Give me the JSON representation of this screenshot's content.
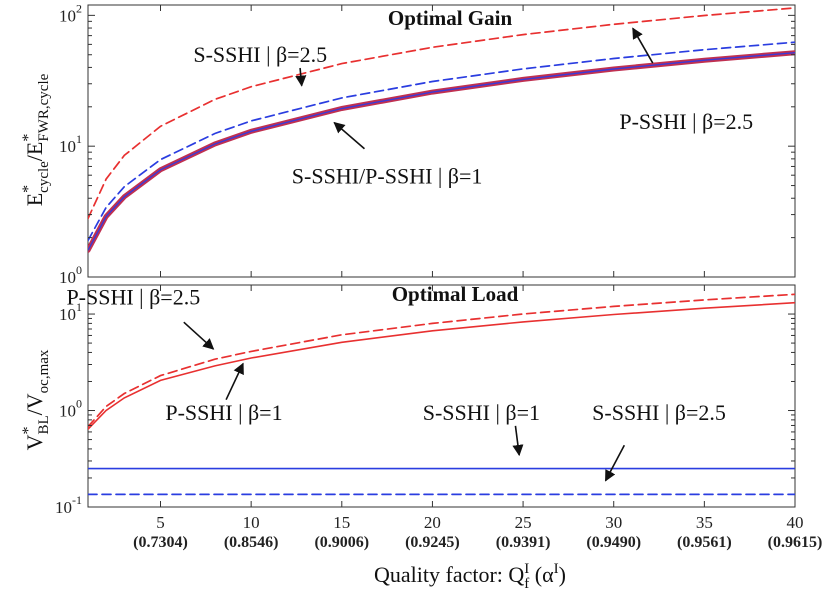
{
  "chart_data": [
    {
      "type": "line",
      "title": "Optimal Gain",
      "ylabel": "E*cycle/E*FWR,cycle",
      "ylabel_parts": {
        "main1": "E",
        "sup1": "*",
        "sub1": "cycle",
        "slash": "/",
        "main2": "E",
        "sup2": "*",
        "sub2": "FWR,cycle"
      },
      "yscale": "log",
      "ylim": [
        1,
        120
      ],
      "xlim": [
        1,
        40
      ],
      "yticks": [
        {
          "value": 1,
          "base": "10",
          "exp": "0"
        },
        {
          "value": 10,
          "base": "10",
          "exp": "1"
        },
        {
          "value": 100,
          "base": "10",
          "exp": "2"
        }
      ],
      "series": [
        {
          "color": "#e83030",
          "style": "dashed",
          "x": [
            1,
            2,
            3,
            5,
            8,
            10,
            15,
            20,
            25,
            30,
            35,
            40
          ],
          "y": [
            2.8,
            5.6,
            8.5,
            14.2,
            22.8,
            28.5,
            42.8,
            57,
            71.3,
            85.5,
            99.8,
            114
          ]
        },
        {
          "color": "#2a3de0",
          "style": "dashed",
          "x": [
            1,
            2,
            3,
            5,
            8,
            10,
            15,
            20,
            25,
            30,
            35,
            40
          ],
          "y": [
            1.9,
            3.4,
            4.9,
            7.9,
            12.5,
            15.6,
            23.4,
            31.2,
            39,
            46.8,
            54.6,
            62.4
          ]
        },
        {
          "color": "#c03050",
          "style": "thick",
          "x": [
            1,
            2,
            3,
            5,
            8,
            10,
            15,
            20,
            25,
            30,
            35,
            40
          ],
          "y": [
            1.6,
            2.9,
            4.1,
            6.6,
            10.4,
            13,
            19.4,
            25.9,
            32.4,
            38.9,
            45.4,
            51.8
          ]
        }
      ],
      "annotations": [
        {
          "text": "S-SSHI | β=2.5",
          "x": 10.5,
          "y": 44,
          "target_x": 12.8,
          "target_y": 28
        },
        {
          "text": "P-SSHI | β=2.5",
          "x": 34,
          "y": 13.5,
          "target_x": 31,
          "target_y": 82
        },
        {
          "text": "S-SSHI/P-SSHI | β=1",
          "x": 17.5,
          "y": 5.2,
          "target_x": 14.5,
          "target_y": 15.5
        }
      ]
    },
    {
      "type": "line",
      "title": "Optimal Load",
      "ylabel": "V*BL/Voc,max",
      "ylabel_parts": {
        "main1": "V",
        "sup1": "*",
        "sub1": "BL",
        "slash": "/",
        "main2": "V",
        "sub2": "oc,max"
      },
      "yscale": "log",
      "ylim": [
        0.1,
        20
      ],
      "xlim": [
        1,
        40
      ],
      "xlabel": "Quality factor: Q",
      "xlabel_parts": {
        "main": "Quality factor: Q",
        "sup": "I",
        "sub": "f",
        "paren_open": " (α",
        "paren_sup": "I",
        "paren_close": ")"
      },
      "xticks": [
        {
          "value": 5,
          "label": "5",
          "sub": "(0.7304)"
        },
        {
          "value": 10,
          "label": "10",
          "sub": "(0.8546)"
        },
        {
          "value": 15,
          "label": "15",
          "sub": "(0.9006)"
        },
        {
          "value": 20,
          "label": "20",
          "sub": "(0.9245)"
        },
        {
          "value": 25,
          "label": "25",
          "sub": "(0.9391)"
        },
        {
          "value": 30,
          "label": "30",
          "sub": "(0.9490)"
        },
        {
          "value": 35,
          "label": "35",
          "sub": "(0.9561)"
        },
        {
          "value": 40,
          "label": "40",
          "sub": "(0.9615)"
        }
      ],
      "yticks": [
        {
          "value": 0.1,
          "base": "10",
          "exp": "-1"
        },
        {
          "value": 1,
          "base": "10",
          "exp": "0"
        },
        {
          "value": 10,
          "base": "10",
          "exp": "1"
        }
      ],
      "series": [
        {
          "color": "#e83030",
          "style": "dashed",
          "x": [
            1,
            2,
            3,
            5,
            8,
            10,
            15,
            20,
            25,
            30,
            35,
            40
          ],
          "y": [
            0.68,
            1.1,
            1.5,
            2.3,
            3.4,
            4.1,
            6.1,
            8,
            10,
            12,
            14,
            16
          ]
        },
        {
          "color": "#e83030",
          "style": "solid",
          "x": [
            1,
            2,
            3,
            5,
            8,
            10,
            15,
            20,
            25,
            30,
            35,
            40
          ],
          "y": [
            0.64,
            1.0,
            1.35,
            2.05,
            2.9,
            3.5,
            5.1,
            6.7,
            8.3,
            9.9,
            11.5,
            13.1
          ]
        },
        {
          "color": "#2a3de0",
          "style": "solid",
          "x": [
            1,
            40
          ],
          "y": [
            0.25,
            0.25
          ]
        },
        {
          "color": "#2a3de0",
          "style": "dashed",
          "x": [
            1,
            40
          ],
          "y": [
            0.135,
            0.135
          ]
        }
      ],
      "annotations": [
        {
          "text": "P-SSHI | β=2.5",
          "x": 3.5,
          "y": 12.5,
          "target_x": 8,
          "target_y": 4.2
        },
        {
          "text": "P-SSHI | β=1",
          "x": 8.5,
          "y": 0.8,
          "target_x": 9.6,
          "target_y": 3.2
        },
        {
          "text": "S-SSHI | β=1",
          "x": 22.7,
          "y": 0.8,
          "target_x": 24.8,
          "target_y": 0.33
        },
        {
          "text": "S-SSHI | β=2.5",
          "x": 32.5,
          "y": 0.8,
          "target_x": 29.5,
          "target_y": 0.18
        }
      ]
    }
  ]
}
